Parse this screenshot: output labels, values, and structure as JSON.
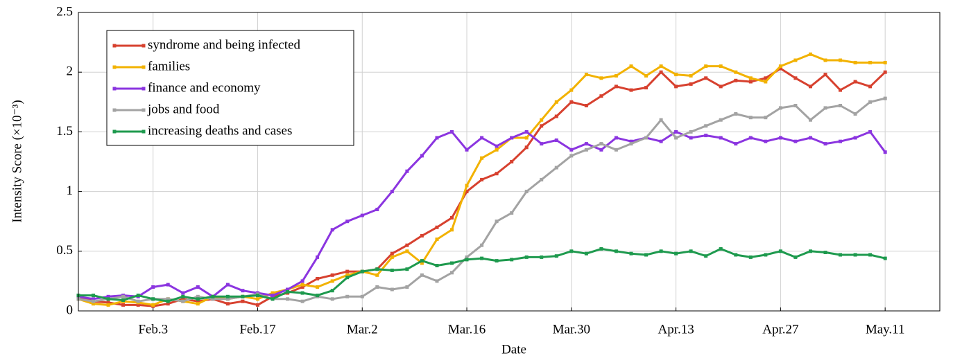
{
  "chart_data": {
    "type": "line",
    "xlabel": "Date",
    "ylabel": "Intensity Score (×10⁻³)",
    "categories": [
      "Jan.24",
      "Jan.26",
      "Jan.28",
      "Jan.30",
      "Feb.1",
      "Feb.3",
      "Feb.5",
      "Feb.7",
      "Feb.9",
      "Feb.11",
      "Feb.13",
      "Feb.15",
      "Feb.17",
      "Feb.19",
      "Feb.21",
      "Feb.23",
      "Feb.25",
      "Feb.27",
      "Feb.29",
      "Mar.2",
      "Mar.4",
      "Mar.6",
      "Mar.8",
      "Mar.10",
      "Mar.12",
      "Mar.14",
      "Mar.16",
      "Mar.18",
      "Mar.20",
      "Mar.22",
      "Mar.24",
      "Mar.26",
      "Mar.28",
      "Mar.30",
      "Apr.1",
      "Apr.3",
      "Apr.5",
      "Apr.7",
      "Apr.9",
      "Apr.11",
      "Apr.13",
      "Apr.15",
      "Apr.17",
      "Apr.19",
      "Apr.21",
      "Apr.23",
      "Apr.25",
      "Apr.27",
      "Apr.29",
      "May.1",
      "May.3",
      "May.5",
      "May.7",
      "May.9",
      "May.11"
    ],
    "xticks": [
      "Feb.3",
      "Feb.17",
      "Mar.2",
      "Mar.16",
      "Mar.30",
      "Apr.13",
      "Apr.27",
      "May.11"
    ],
    "ylim": [
      0,
      2.5
    ],
    "yticks": [
      0,
      0.5,
      1,
      1.5,
      2,
      2.5
    ],
    "grid": true,
    "legend": "upper left",
    "series": [
      {
        "name": "syndrome and being infected",
        "color": "#d7412f",
        "values": [
          0.12,
          0.08,
          0.07,
          0.05,
          0.05,
          0.04,
          0.06,
          0.1,
          0.08,
          0.1,
          0.06,
          0.08,
          0.05,
          0.12,
          0.15,
          0.2,
          0.27,
          0.3,
          0.33,
          0.33,
          0.35,
          0.48,
          0.55,
          0.63,
          0.7,
          0.78,
          1.0,
          1.1,
          1.15,
          1.25,
          1.37,
          1.55,
          1.63,
          1.75,
          1.72,
          1.8,
          1.88,
          1.85,
          1.87,
          2.0,
          1.88,
          1.9,
          1.95,
          1.88,
          1.93,
          1.92,
          1.95,
          2.03,
          1.95,
          1.88,
          1.98,
          1.85,
          1.92,
          1.88,
          2.0
        ]
      },
      {
        "name": "families",
        "color": "#f2b200",
        "values": [
          0.1,
          0.06,
          0.05,
          0.08,
          0.07,
          0.05,
          0.1,
          0.08,
          0.06,
          0.12,
          0.1,
          0.12,
          0.1,
          0.15,
          0.18,
          0.22,
          0.2,
          0.25,
          0.3,
          0.33,
          0.3,
          0.45,
          0.5,
          0.4,
          0.6,
          0.68,
          1.05,
          1.28,
          1.35,
          1.45,
          1.45,
          1.6,
          1.75,
          1.85,
          1.98,
          1.95,
          1.97,
          2.05,
          1.97,
          2.05,
          1.98,
          1.97,
          2.05,
          2.05,
          2.0,
          1.95,
          1.92,
          2.05,
          2.1,
          2.15,
          2.1,
          2.1,
          2.08,
          2.08,
          2.08
        ]
      },
      {
        "name": "finance and economy",
        "color": "#8b35e0",
        "values": [
          0.12,
          0.1,
          0.12,
          0.13,
          0.12,
          0.2,
          0.22,
          0.15,
          0.2,
          0.12,
          0.22,
          0.17,
          0.15,
          0.13,
          0.18,
          0.25,
          0.45,
          0.68,
          0.75,
          0.8,
          0.85,
          1.0,
          1.17,
          1.3,
          1.45,
          1.5,
          1.35,
          1.45,
          1.38,
          1.45,
          1.5,
          1.4,
          1.43,
          1.35,
          1.4,
          1.35,
          1.45,
          1.42,
          1.45,
          1.42,
          1.5,
          1.45,
          1.47,
          1.45,
          1.4,
          1.45,
          1.42,
          1.45,
          1.42,
          1.45,
          1.4,
          1.42,
          1.45,
          1.5,
          1.33
        ]
      },
      {
        "name": "jobs and food",
        "color": "#a3a3a3",
        "values": [
          0.1,
          0.08,
          0.1,
          0.12,
          0.08,
          0.1,
          0.1,
          0.08,
          0.12,
          0.1,
          0.1,
          0.12,
          0.14,
          0.1,
          0.1,
          0.08,
          0.12,
          0.1,
          0.12,
          0.12,
          0.2,
          0.18,
          0.2,
          0.3,
          0.25,
          0.32,
          0.45,
          0.55,
          0.75,
          0.82,
          1.0,
          1.1,
          1.2,
          1.3,
          1.35,
          1.4,
          1.35,
          1.4,
          1.45,
          1.6,
          1.45,
          1.5,
          1.55,
          1.6,
          1.65,
          1.62,
          1.62,
          1.7,
          1.72,
          1.6,
          1.7,
          1.72,
          1.65,
          1.75,
          1.78
        ]
      },
      {
        "name": "increasing deaths and cases",
        "color": "#1e9a4e",
        "values": [
          0.13,
          0.13,
          0.1,
          0.09,
          0.13,
          0.1,
          0.08,
          0.12,
          0.1,
          0.12,
          0.12,
          0.12,
          0.13,
          0.1,
          0.16,
          0.15,
          0.13,
          0.17,
          0.28,
          0.33,
          0.35,
          0.34,
          0.35,
          0.42,
          0.38,
          0.4,
          0.43,
          0.44,
          0.42,
          0.43,
          0.45,
          0.45,
          0.46,
          0.5,
          0.48,
          0.52,
          0.5,
          0.48,
          0.47,
          0.5,
          0.48,
          0.5,
          0.46,
          0.52,
          0.47,
          0.45,
          0.47,
          0.5,
          0.45,
          0.5,
          0.49,
          0.47,
          0.47,
          0.47,
          0.44
        ]
      }
    ]
  }
}
